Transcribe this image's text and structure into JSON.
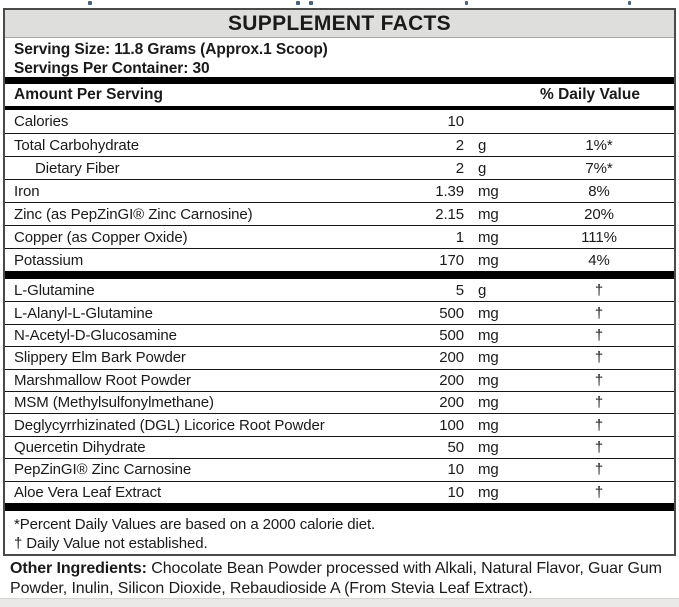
{
  "label": {
    "title": "SUPPLEMENT FACTS",
    "serving_size": "Serving Size: 11.8 Grams (Approx.1 Scoop)",
    "servings_per_container": "Servings Per Container: 30",
    "amount_header": "Amount Per Serving",
    "dv_header": "% Daily Value"
  },
  "nutrients": [
    {
      "name": "Calories",
      "amount": "10",
      "unit": "",
      "dv": ""
    },
    {
      "name": "Total Carbohydrate",
      "amount": "2",
      "unit": "g",
      "dv": "1%*"
    },
    {
      "name": "Dietary Fiber",
      "amount": "2",
      "unit": "g",
      "dv": "7%*",
      "indent": true
    },
    {
      "name": "Iron",
      "amount": "1.39",
      "unit": "mg",
      "dv": "8%"
    },
    {
      "name": "Zinc (as PepZinGI® Zinc Carnosine)",
      "amount": "2.15",
      "unit": "mg",
      "dv": "20%"
    },
    {
      "name": "Copper (as Copper Oxide)",
      "amount": "1",
      "unit": "mg",
      "dv": "111%"
    },
    {
      "name": "Potassium",
      "amount": "170",
      "unit": "mg",
      "dv": "4%"
    }
  ],
  "supplements": [
    {
      "name": "L-Glutamine",
      "amount": "5",
      "unit": "g",
      "dv": "†"
    },
    {
      "name": "L-Alanyl-L-Glutamine",
      "amount": "500",
      "unit": "mg",
      "dv": "†"
    },
    {
      "name": "N-Acetyl-D-Glucosamine",
      "amount": "500",
      "unit": "mg",
      "dv": "†"
    },
    {
      "name": "Slippery Elm Bark Powder",
      "amount": "200",
      "unit": "mg",
      "dv": "†"
    },
    {
      "name": "Marshmallow Root Powder",
      "amount": "200",
      "unit": "mg",
      "dv": "†"
    },
    {
      "name": "MSM (Methylsulfonylmethane)",
      "amount": "200",
      "unit": "mg",
      "dv": "†"
    },
    {
      "name": "Deglycyrrhizinated (DGL) Licorice Root Powder",
      "amount": "100",
      "unit": "mg",
      "dv": "†"
    },
    {
      "name": "Quercetin Dihydrate",
      "amount": "50",
      "unit": "mg",
      "dv": "†"
    },
    {
      "name": "PepZinGI® Zinc Carnosine",
      "amount": "10",
      "unit": "mg",
      "dv": "†"
    },
    {
      "name": "Aloe Vera Leaf Extract",
      "amount": "10",
      "unit": "mg",
      "dv": "†"
    }
  ],
  "footnotes": {
    "percent": "*Percent Daily Values are based on a 2000 calorie diet.",
    "dagger": "† Daily Value not established."
  },
  "other_ingredients": {
    "label": "Other Ingredients:",
    "text": " Chocolate Bean Powder processed with Alkali, Natural Flavor, Guar Gum Powder, Inulin, Silicon Dioxide, Rebaudioside A (From Stevia Leaf Extract)."
  },
  "colors": {
    "title_bar_bg": "#dededc",
    "section_bar": "#000000",
    "bottom_edge": "#ebe9e7",
    "cropped_text_fragments": "#44618f"
  }
}
